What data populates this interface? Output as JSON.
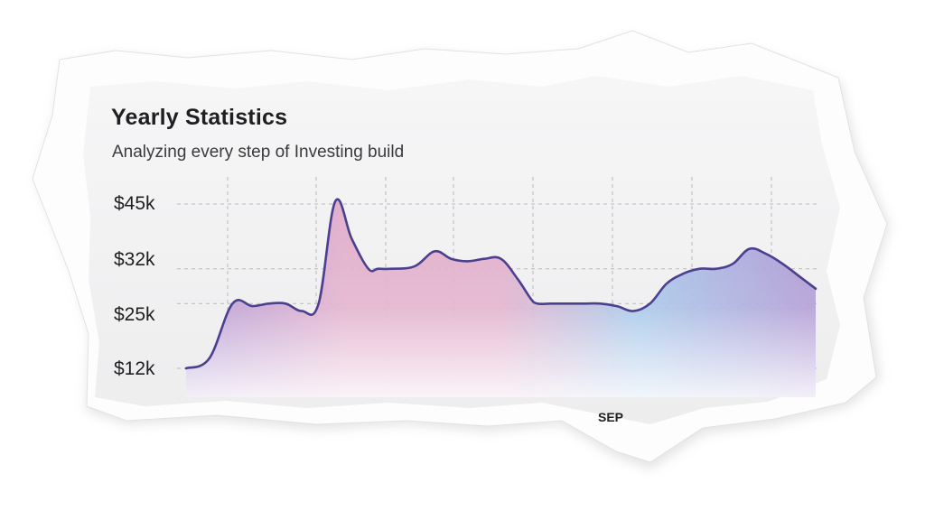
{
  "chart_data": {
    "type": "area",
    "title": "Yearly Statistics",
    "subtitle": "Analyzing every step of  Investing build",
    "xlabel": "",
    "ylabel": "",
    "y_ticks": [
      {
        "label": "$45k",
        "value": 45
      },
      {
        "label": "$32k",
        "value": 32
      },
      {
        "label": "$25k",
        "value": 25
      },
      {
        "label": "$12k",
        "value": 12
      }
    ],
    "x_visible_label": "SEP",
    "x": [
      0,
      0.7,
      1.4,
      2,
      2.5,
      3,
      3.5,
      4,
      4.5,
      5,
      5.5,
      5.8,
      6.2,
      6.9,
      7.5,
      8,
      8.5,
      9,
      9.5,
      10,
      10.4,
      10.6,
      11,
      11.5,
      12,
      12.5,
      13,
      13.5,
      14,
      14.5,
      15,
      15.5,
      16,
      16.5,
      17,
      17.5,
      18,
      18.6,
      19
    ],
    "values": [
      12,
      14,
      25,
      24.5,
      25,
      25,
      23.5,
      25,
      45.5,
      38,
      32,
      32,
      32,
      32.5,
      35.5,
      34,
      33.5,
      34,
      34,
      30,
      26,
      25,
      25,
      25,
      25,
      25,
      24.5,
      23.5,
      25,
      29,
      31,
      32,
      32,
      33,
      36,
      35,
      33,
      30,
      28
    ],
    "ylim": [
      12,
      45
    ],
    "grid": true,
    "legend": "none",
    "colors": {
      "line": "#4b3f8f",
      "fill_violet": "#a98fd0",
      "fill_pink": "#e0a9c8",
      "fill_blue": "#9cc2e8",
      "grid": "#b9b9bd"
    }
  }
}
